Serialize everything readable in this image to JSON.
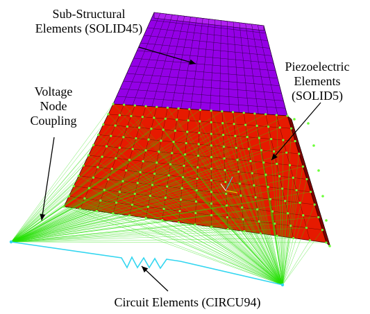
{
  "labels": {
    "sub_structural": [
      "Sub-Structural",
      "Elements (SOLID45)"
    ],
    "piezoelectric": [
      "Piezoelectric",
      "Elements",
      "(SOLID5)"
    ],
    "voltage_coupling": [
      "Voltage",
      "Node",
      "Coupling"
    ],
    "circuit": "Circuit Elements (CIRCU94)"
  },
  "colors": {
    "substructure": "#9400E6",
    "piezo": "#E61A00",
    "piezo_dark": "#7A0000",
    "coupling": "#22E000",
    "circuit": "#33D6F0",
    "mesh": "#200030"
  }
}
